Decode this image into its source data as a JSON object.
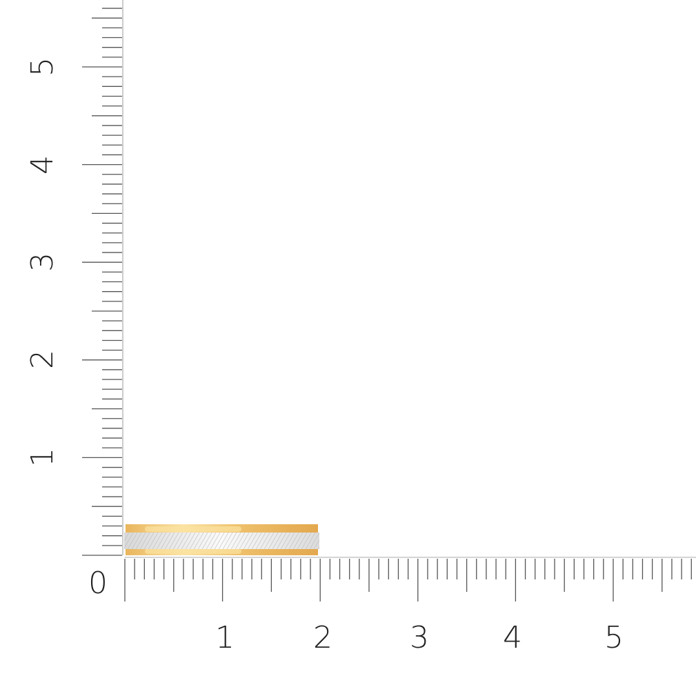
{
  "x_axis": {
    "zero_label": "0",
    "labels": [
      "1",
      "2",
      "3",
      "4",
      "5"
    ]
  },
  "y_axis": {
    "labels": [
      "1",
      "2",
      "3",
      "4",
      "5"
    ]
  },
  "product": {
    "name": "ring-profile",
    "outer_color": "#e8b45a",
    "inner_color": "#e6e6e6",
    "width_units": 2.0,
    "height_units": 0.32
  }
}
